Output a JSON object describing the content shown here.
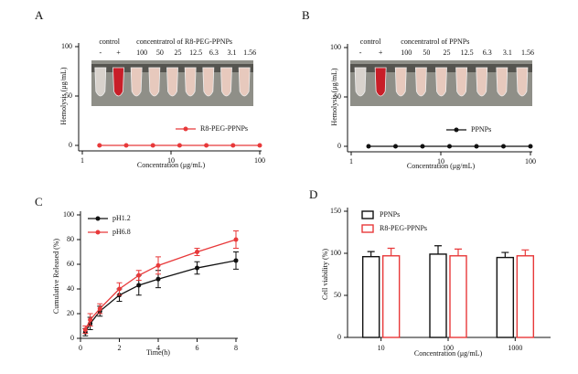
{
  "chart_data": [
    {
      "type": "line",
      "panel_label": "A",
      "ylabel": "Hemolysis (μg/mL)",
      "xlabel": "Concentration (μg/mL)",
      "xscale": "log",
      "xlim": [
        1,
        100
      ],
      "xticks": [
        1,
        10,
        100
      ],
      "ylim": [
        0,
        100
      ],
      "yticks": [
        0,
        50,
        100
      ],
      "x": [
        1.5625,
        3.125,
        6.25,
        12.5,
        25,
        50,
        100
      ],
      "series": [
        {
          "name": "R8-PEG-PPNPs",
          "color": "#e8393a",
          "values": [
            0,
            0,
            0,
            0,
            0,
            0,
            0
          ]
        }
      ],
      "legend": "lower-right",
      "photo_labels": {
        "control": "control",
        "minus": "-",
        "plus": "+",
        "caption": "concentratrol of R8-PEG-PPNPs",
        "doses": [
          "100",
          "50",
          "25",
          "12.5",
          "6.3",
          "3.1",
          "1.56"
        ]
      }
    },
    {
      "type": "line",
      "panel_label": "B",
      "ylabel": "Hemolysis (μg/mL)",
      "xlabel": "Concentration (μg/mL)",
      "xscale": "log",
      "xlim": [
        1,
        100
      ],
      "xticks": [
        1,
        10,
        100
      ],
      "ylim": [
        0,
        100
      ],
      "yticks": [
        0,
        50,
        100
      ],
      "x": [
        1.5625,
        3.125,
        6.25,
        12.5,
        25,
        50,
        100
      ],
      "series": [
        {
          "name": "PPNPs",
          "color": "#111111",
          "values": [
            0,
            0,
            0,
            0,
            0,
            0,
            0
          ]
        }
      ],
      "legend": "lower-right",
      "photo_labels": {
        "control": "control",
        "minus": "-",
        "plus": "+",
        "caption": "concentratrol of PPNPs",
        "doses": [
          "100",
          "50",
          "25",
          "12.5",
          "6.3",
          "3.1",
          "1.56"
        ]
      }
    },
    {
      "type": "line",
      "panel_label": "C",
      "ylabel": "Cumulative Released (%)",
      "xlabel": "Time(h)",
      "xlim": [
        0,
        8
      ],
      "xticks": [
        0,
        2,
        4,
        6,
        8
      ],
      "ylim": [
        0,
        100
      ],
      "yticks": [
        0,
        20,
        40,
        60,
        80,
        100
      ],
      "x": [
        0.25,
        0.5,
        1,
        2,
        3,
        4,
        6,
        8
      ],
      "series": [
        {
          "name": "pH1.2",
          "color": "#111111",
          "values": [
            5,
            12,
            22,
            35,
            43,
            48,
            57,
            63
          ],
          "errors": [
            3,
            5,
            4,
            5,
            8,
            7,
            5,
            7
          ]
        },
        {
          "name": "pH6.8",
          "color": "#e8393a",
          "values": [
            7,
            15,
            24,
            40,
            51,
            59,
            70,
            80
          ],
          "errors": [
            3,
            5,
            4,
            5,
            4,
            7,
            3,
            7
          ]
        }
      ],
      "legend": "upper-left"
    },
    {
      "type": "bar",
      "panel_label": "D",
      "ylabel": "Cell viability (%)",
      "xlabel": "Concentration (μg/mL)",
      "categories": [
        "10",
        "100",
        "1000"
      ],
      "ylim": [
        0,
        150
      ],
      "yticks": [
        0,
        50,
        100,
        150
      ],
      "series": [
        {
          "name": "PPNPs",
          "color": "#111111",
          "values": [
            96,
            99,
            95
          ],
          "errors": [
            6,
            10,
            6
          ]
        },
        {
          "name": "R8-PEG-PPNPs",
          "color": "#e8393a",
          "values": [
            97,
            97,
            97
          ],
          "errors": [
            9,
            8,
            7
          ]
        }
      ],
      "legend": "upper-left"
    }
  ]
}
